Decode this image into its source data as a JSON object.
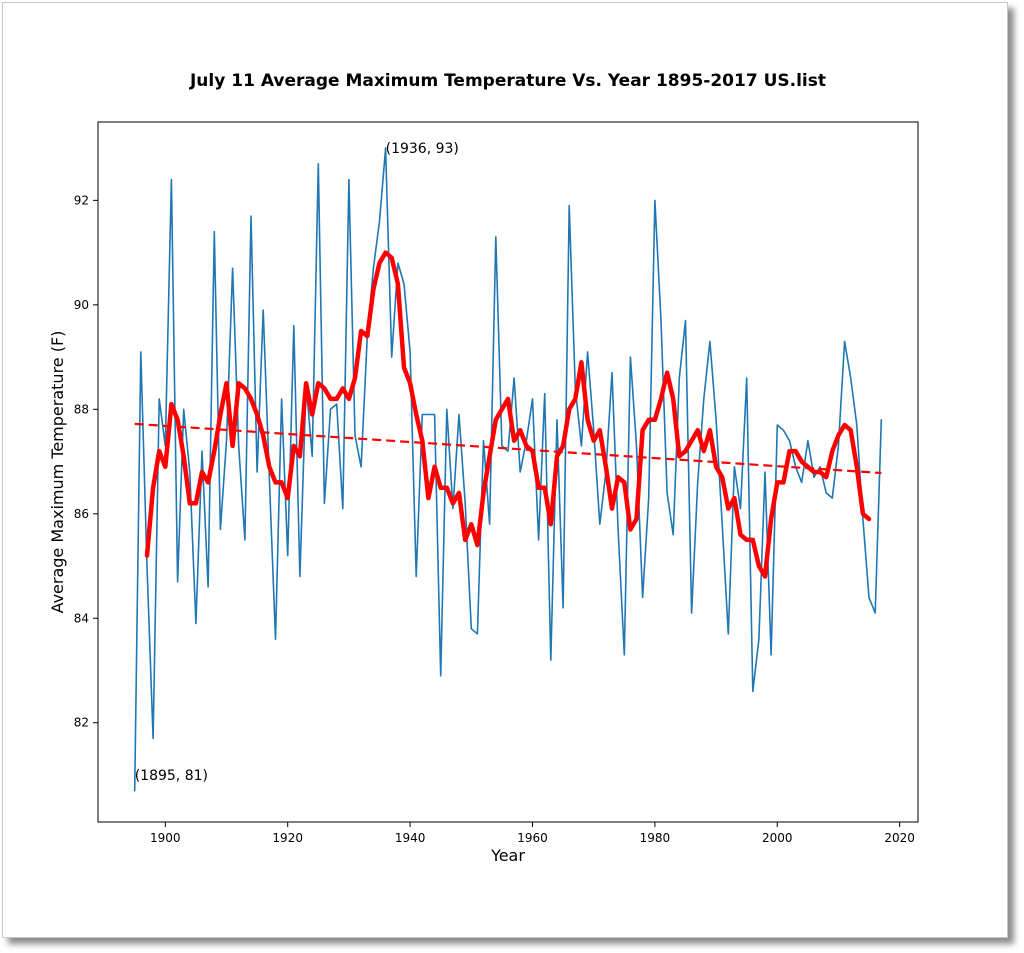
{
  "chart_data": {
    "type": "line",
    "title": "July 11 Average Maximum Temperature Vs. Year 1895-2017 US.list",
    "xlabel": "Year",
    "ylabel": "Average Maximum Temperature (F)",
    "xlim": [
      1889,
      2023
    ],
    "ylim": [
      80.1,
      93.5
    ],
    "x_ticks": [
      1900,
      1920,
      1940,
      1960,
      1980,
      2000,
      2020
    ],
    "y_ticks": [
      82,
      84,
      86,
      88,
      90,
      92
    ],
    "grid": false,
    "colors": {
      "annual": "#1f77b4",
      "smoothed": "#ff0000",
      "trend": "#ff0000"
    },
    "annotations": [
      {
        "x": 1936,
        "y": 93,
        "text": "(1936, 93)"
      },
      {
        "x": 1895,
        "y": 81,
        "text": "(1895, 81)"
      }
    ],
    "series": [
      {
        "style": "annual",
        "x": [
          1895,
          1896,
          1897,
          1898,
          1899,
          1900,
          1901,
          1902,
          1903,
          1904,
          1905,
          1906,
          1907,
          1908,
          1909,
          1910,
          1911,
          1912,
          1913,
          1914,
          1915,
          1916,
          1917,
          1918,
          1919,
          1920,
          1921,
          1922,
          1923,
          1924,
          1925,
          1926,
          1927,
          1928,
          1929,
          1930,
          1931,
          1932,
          1933,
          1934,
          1935,
          1936,
          1937,
          1938,
          1939,
          1940,
          1941,
          1942,
          1943,
          1944,
          1945,
          1946,
          1947,
          1948,
          1949,
          1950,
          1951,
          1952,
          1953,
          1954,
          1955,
          1956,
          1957,
          1958,
          1959,
          1960,
          1961,
          1962,
          1963,
          1964,
          1965,
          1966,
          1967,
          1968,
          1969,
          1970,
          1971,
          1972,
          1973,
          1974,
          1975,
          1976,
          1977,
          1978,
          1979,
          1980,
          1981,
          1982,
          1983,
          1984,
          1985,
          1986,
          1987,
          1988,
          1989,
          1990,
          1991,
          1992,
          1993,
          1994,
          1995,
          1996,
          1997,
          1998,
          1999,
          2000,
          2001,
          2002,
          2003,
          2004,
          2005,
          2006,
          2007,
          2008,
          2009,
          2010,
          2011,
          2012,
          2013,
          2014,
          2015,
          2016,
          2017
        ],
        "y": [
          80.7,
          89.1,
          85.0,
          81.7,
          88.2,
          87.3,
          92.4,
          84.7,
          88.0,
          86.8,
          83.9,
          87.2,
          84.6,
          91.4,
          85.7,
          87.4,
          90.7,
          87.3,
          85.5,
          91.7,
          86.8,
          89.9,
          86.7,
          83.6,
          88.2,
          85.2,
          89.6,
          84.8,
          88.5,
          87.1,
          92.7,
          86.2,
          88.0,
          88.1,
          86.1,
          92.4,
          87.5,
          86.9,
          89.4,
          90.7,
          91.6,
          93.0,
          89.0,
          90.8,
          90.4,
          89.1,
          84.8,
          87.9,
          87.9,
          87.9,
          82.9,
          88.0,
          86.1,
          87.9,
          86.2,
          83.8,
          83.7,
          87.4,
          85.8,
          91.3,
          87.3,
          87.2,
          88.6,
          86.8,
          87.4,
          88.2,
          85.5,
          88.3,
          83.2,
          87.8,
          84.2,
          91.9,
          88.4,
          87.3,
          89.1,
          87.6,
          85.8,
          86.8,
          88.7,
          85.7,
          83.3,
          89.0,
          87.3,
          84.4,
          86.3,
          92.0,
          89.7,
          86.4,
          85.6,
          88.6,
          89.7,
          84.1,
          86.6,
          88.2,
          89.3,
          87.8,
          85.8,
          83.7,
          86.9,
          86.1,
          88.6,
          82.6,
          83.6,
          86.8,
          83.3,
          87.7,
          87.6,
          87.4,
          86.9,
          86.6,
          87.4,
          86.7,
          86.9,
          86.4,
          86.3,
          87.3,
          89.3,
          88.6,
          87.7,
          85.9,
          84.4,
          84.1,
          87.8
        ]
      },
      {
        "style": "smoothed",
        "x": [
          1897,
          1898,
          1899,
          1900,
          1901,
          1902,
          1903,
          1904,
          1905,
          1906,
          1907,
          1908,
          1909,
          1910,
          1911,
          1912,
          1913,
          1914,
          1915,
          1916,
          1917,
          1918,
          1919,
          1920,
          1921,
          1922,
          1923,
          1924,
          1925,
          1926,
          1927,
          1928,
          1929,
          1930,
          1931,
          1932,
          1933,
          1934,
          1935,
          1936,
          1937,
          1938,
          1939,
          1940,
          1941,
          1942,
          1943,
          1944,
          1945,
          1946,
          1947,
          1948,
          1949,
          1950,
          1951,
          1952,
          1953,
          1954,
          1955,
          1956,
          1957,
          1958,
          1959,
          1960,
          1961,
          1962,
          1963,
          1964,
          1965,
          1966,
          1967,
          1968,
          1969,
          1970,
          1971,
          1972,
          1973,
          1974,
          1975,
          1976,
          1977,
          1978,
          1979,
          1980,
          1981,
          1982,
          1983,
          1984,
          1985,
          1986,
          1987,
          1988,
          1989,
          1990,
          1991,
          1992,
          1993,
          1994,
          1995,
          1996,
          1997,
          1998,
          1999,
          2000,
          2001,
          2002,
          2003,
          2004,
          2005,
          2006,
          2007,
          2008,
          2009,
          2010,
          2011,
          2012,
          2013,
          2014,
          2015
        ],
        "y": [
          85.2,
          86.5,
          87.2,
          86.9,
          88.1,
          87.8,
          87.1,
          86.2,
          86.2,
          86.8,
          86.6,
          87.2,
          87.9,
          88.5,
          87.3,
          88.5,
          88.4,
          88.2,
          87.9,
          87.5,
          86.9,
          86.6,
          86.6,
          86.3,
          87.3,
          87.1,
          88.5,
          87.9,
          88.5,
          88.4,
          88.2,
          88.2,
          88.4,
          88.2,
          88.6,
          89.5,
          89.4,
          90.3,
          90.8,
          91.0,
          90.9,
          90.4,
          88.8,
          88.5,
          87.9,
          87.4,
          86.3,
          86.9,
          86.5,
          86.5,
          86.2,
          86.4,
          85.5,
          85.8,
          85.4,
          86.4,
          87.1,
          87.8,
          88.0,
          88.2,
          87.4,
          87.6,
          87.3,
          87.2,
          86.5,
          86.5,
          85.8,
          87.1,
          87.3,
          88.0,
          88.2,
          88.9,
          87.8,
          87.4,
          87.6,
          86.9,
          86.1,
          86.7,
          86.6,
          85.7,
          85.9,
          87.6,
          87.8,
          87.8,
          88.2,
          88.7,
          88.2,
          87.1,
          87.2,
          87.4,
          87.6,
          87.2,
          87.6,
          86.9,
          86.7,
          86.1,
          86.3,
          85.6,
          85.5,
          85.5,
          85.0,
          84.8,
          85.9,
          86.6,
          86.6,
          87.2,
          87.2,
          87.0,
          86.9,
          86.8,
          86.8,
          86.7,
          87.2,
          87.5,
          87.7,
          87.6,
          86.9,
          86.0,
          85.9
        ]
      },
      {
        "style": "trend",
        "x": [
          1895,
          2017
        ],
        "y": [
          87.72,
          86.78
        ]
      }
    ]
  }
}
